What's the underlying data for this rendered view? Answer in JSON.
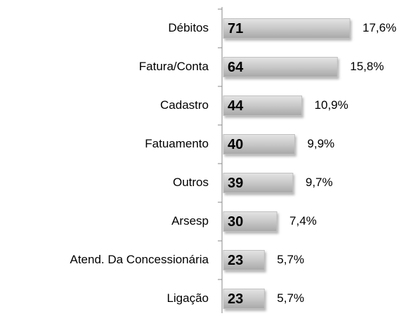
{
  "chart_data": {
    "type": "bar",
    "orientation": "horizontal",
    "categories": [
      "Débitos",
      "Fatura/Conta",
      "Cadastro",
      "Fatuamento",
      "Outros",
      "Arsesp",
      "Atend. Da Concessionária",
      "Ligação"
    ],
    "values": [
      71,
      64,
      44,
      40,
      39,
      30,
      23,
      23
    ],
    "percent_labels": [
      "17,6%",
      "15,8%",
      "10,9%",
      "9,9%",
      "9,7%",
      "7,4%",
      "5,7%",
      "5,7%"
    ],
    "color": "#c0c0c0"
  }
}
